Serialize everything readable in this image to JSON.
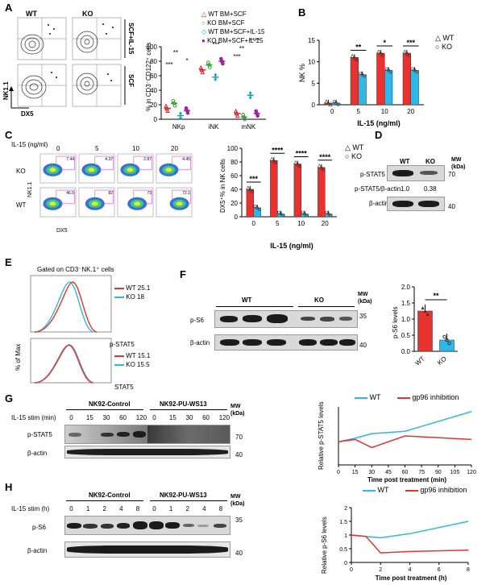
{
  "panel_letters": [
    "A",
    "B",
    "C",
    "D",
    "E",
    "F",
    "G",
    "H"
  ],
  "panelA": {
    "flow": {
      "col_labels": [
        "WT",
        "KO"
      ],
      "row_labels": [
        "SCF+IL-15",
        "SCF"
      ],
      "y_axis": "NK1.1",
      "x_axis": "DX5"
    },
    "chart_data": {
      "type": "scatter",
      "ylabel": "% in CD3⁻CD122⁺ cells",
      "categories": [
        "NKp",
        "iNK",
        "mNK"
      ],
      "ylim": [
        0,
        100
      ],
      "yticks": [
        "0",
        "20",
        "40",
        "60",
        "80",
        "100"
      ],
      "series": [
        {
          "name": "WT BM+SCF",
          "color": "#d62728",
          "marker": "triangle",
          "values": [
            15,
            68,
            8
          ]
        },
        {
          "name": "KO BM+SCF",
          "color": "#2ca02c",
          "marker": "circle",
          "values": [
            22,
            75,
            3
          ]
        },
        {
          "name": "WT BM+SCF+IL-15",
          "color": "#17a2b8",
          "marker": "diamond",
          "values": [
            5,
            58,
            33
          ]
        },
        {
          "name": "KO BM+SCF+IL-15",
          "color": "#a020a0",
          "marker": "circle-filled",
          "values": [
            12,
            80,
            8
          ]
        }
      ],
      "significance": [
        "***",
        "**",
        "*",
        "***",
        "***",
        "**",
        "****"
      ]
    }
  },
  "panelB": {
    "chart_data": {
      "type": "bar",
      "ylabel": "NK %",
      "xlabel": "IL-15 (ng/ml)",
      "categories": [
        "0",
        "5",
        "10",
        "20"
      ],
      "ylim": [
        0,
        15
      ],
      "yticks": [
        "0",
        "5",
        "10",
        "15"
      ],
      "series": [
        {
          "name": "WT",
          "color": "#e8322f",
          "values": [
            0.4,
            11,
            12,
            12
          ]
        },
        {
          "name": "KO",
          "color": "#2fb7e8",
          "values": [
            0.4,
            7,
            8,
            8
          ]
        }
      ],
      "significance": [
        "**",
        "*",
        "***"
      ]
    }
  },
  "panelC": {
    "flow": {
      "header": "IL-15 (ng/ml)",
      "doses": [
        "0",
        "5",
        "10",
        "20"
      ],
      "rows": [
        {
          "label": "KO",
          "values": [
            "7.44",
            "4.37",
            "2.87",
            "4.45"
          ]
        },
        {
          "label": "WT",
          "values": [
            "46.5",
            "82",
            "73",
            "72.1"
          ]
        }
      ],
      "y_axis": "NK1.1",
      "x_axis": "DX5"
    },
    "chart_data": {
      "type": "bar",
      "ylabel": "DX5⁺% in NK cells",
      "xlabel": "IL-15 (ng/ml)",
      "categories": [
        "0",
        "5",
        "10",
        "20"
      ],
      "ylim": [
        0,
        100
      ],
      "yticks": [
        "0",
        "20",
        "40",
        "60",
        "80",
        "100"
      ],
      "series": [
        {
          "name": "WT",
          "color": "#e8322f",
          "values": [
            40,
            82,
            77,
            72
          ]
        },
        {
          "name": "KO",
          "color": "#2fb7e8",
          "values": [
            13,
            4,
            4,
            4
          ]
        }
      ],
      "significance": [
        "***",
        "****",
        "****",
        "****"
      ]
    }
  },
  "panelD": {
    "cols": [
      "WT",
      "KO"
    ],
    "mw": "MW\n(kDa)",
    "rows": [
      "p-STAT5",
      "p-STAT5/β-actin",
      "β-actin"
    ],
    "ratios": [
      "1.0",
      "0.38"
    ],
    "mw_marks": [
      "70",
      "40"
    ]
  },
  "panelE": {
    "title": "Gated on CD3⁻NK.1⁺ cells",
    "y_axis": "% of Max",
    "top": {
      "axis": "p-STAT5",
      "legend": [
        {
          "label": "WT 25.1",
          "color": "#e8322f"
        },
        {
          "label": "KO 18",
          "color": "#2fb7e8"
        }
      ]
    },
    "bottom": {
      "axis": "STAT5",
      "legend": [
        {
          "label": "WT 15.1",
          "color": "#e8322f"
        },
        {
          "label": "KO 15.5",
          "color": "#2fb7e8"
        }
      ]
    }
  },
  "panelF": {
    "cols": [
      "WT",
      "KO"
    ],
    "mw": "MW\n(kDa)",
    "rows": [
      "p-S6",
      "β-actin"
    ],
    "mw_marks": [
      "35",
      "40"
    ],
    "chart_data": {
      "type": "bar",
      "ylabel": "p-S6 levels",
      "categories": [
        "WT",
        "KO"
      ],
      "ylim": [
        0,
        2.0
      ],
      "yticks": [
        "0.0",
        "0.5",
        "1.0",
        "1.5",
        "2.0"
      ],
      "values": [
        1.25,
        0.35
      ],
      "colors": [
        "#e8322f",
        "#2fb7e8"
      ],
      "significance": "**"
    }
  },
  "panelG": {
    "groups": [
      "NK92-Control",
      "NK92-PU-WS13"
    ],
    "stim_label": "IL-15 stim (min)",
    "timepoints": [
      "0",
      "15",
      "30",
      "60",
      "120",
      "0",
      "15",
      "30",
      "60",
      "120"
    ],
    "mw": "MW\n(kDa)",
    "rows": [
      "p-STAT5",
      "β-actin"
    ],
    "mw_marks": [
      "70",
      "40"
    ],
    "chart_data": {
      "type": "line",
      "ylabel": "Relative p-STAT5 levels",
      "xlabel": "Time post treatment (min)",
      "x": [
        0,
        15,
        30,
        60,
        120
      ],
      "xticks": [
        "0",
        "15",
        "30",
        "45",
        "60",
        "75",
        "90",
        "105",
        "120"
      ],
      "series": [
        {
          "name": "WT",
          "color": "#2fb7e8",
          "values": [
            1.0,
            1.15,
            1.35,
            1.45,
            2.3
          ]
        },
        {
          "name": "gp96 inhibition",
          "color": "#e8322f",
          "values": [
            1.0,
            1.1,
            0.75,
            1.25,
            1.1
          ]
        }
      ]
    }
  },
  "panelH": {
    "groups": [
      "NK92-Control",
      "NK92-PU-WS13"
    ],
    "stim_label": "IL-15 stim (h)",
    "timepoints": [
      "0",
      "1",
      "2",
      "4",
      "8",
      "0",
      "1",
      "2",
      "4",
      "8"
    ],
    "mw": "MW\n(kDa)",
    "rows": [
      "p-S6",
      "β-actin"
    ],
    "mw_marks": [
      "35",
      "40"
    ],
    "chart_data": {
      "type": "line",
      "ylabel": "Relative p-S6 levels",
      "xlabel": "Time post treatment (h)",
      "x": [
        0,
        1,
        2,
        4,
        8
      ],
      "xlim": [
        0,
        8
      ],
      "ylim": [
        0,
        2
      ],
      "xticks": [
        "0",
        "2",
        "4",
        "6",
        "8"
      ],
      "yticks": [
        "0",
        "0.5",
        "1",
        "1.5",
        "2"
      ],
      "series": [
        {
          "name": "WT",
          "color": "#2fb7e8",
          "values": [
            1.0,
            0.95,
            0.9,
            1.05,
            1.5
          ]
        },
        {
          "name": "gp96 inhibition",
          "color": "#e8322f",
          "values": [
            1.0,
            0.95,
            0.35,
            0.4,
            0.45
          ]
        }
      ]
    }
  }
}
